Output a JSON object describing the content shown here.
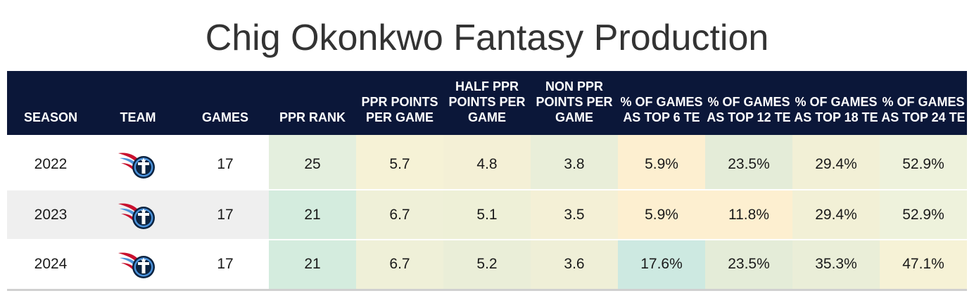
{
  "title": "Chig Okonkwo Fantasy Production",
  "columns": [
    "SEASON",
    "TEAM",
    "GAMES",
    "PPR RANK",
    "PPR POINTS PER GAME",
    "HALF PPR POINTS PER GAME",
    "NON PPR POINTS PER GAME",
    "% OF GAMES AS TOP 6 TE",
    "% OF GAMES AS TOP 12 TE",
    "% OF GAMES AS TOP 18 TE",
    "% OF GAMES AS TOP 24 TE"
  ],
  "rows": [
    {
      "season": "2022",
      "team_logo": "titans-logo-icon",
      "games": "17",
      "ppr_rank": "25",
      "ppr_ppg": "5.7",
      "half_ppr_ppg": "4.8",
      "non_ppr_ppg": "3.8",
      "top6": "5.9%",
      "top12": "23.5%",
      "top18": "29.4%",
      "top24": "52.9%",
      "row_bg": "#ffffff",
      "colors": [
        "#e4efde",
        "#f6f2d6",
        "#f4f0d6",
        "#e9eed9",
        "#fdefd0",
        "#e4ecd8",
        "#f2f0d6",
        "#eef2dc"
      ]
    },
    {
      "season": "2023",
      "team_logo": "titans-logo-icon",
      "games": "17",
      "ppr_rank": "21",
      "ppr_ppg": "6.7",
      "half_ppr_ppg": "5.1",
      "non_ppr_ppg": "3.5",
      "top6": "5.9%",
      "top12": "11.8%",
      "top18": "29.4%",
      "top24": "52.9%",
      "row_bg": "#efefef",
      "colors": [
        "#d4ecde",
        "#eff0d8",
        "#eef0d7",
        "#f4f0d6",
        "#fdefd0",
        "#fdefd0",
        "#f2f0d6",
        "#eef2dc"
      ]
    },
    {
      "season": "2024",
      "team_logo": "titans-logo-icon",
      "games": "17",
      "ppr_rank": "21",
      "ppr_ppg": "6.7",
      "half_ppr_ppg": "5.2",
      "non_ppr_ppg": "3.6",
      "top6": "17.6%",
      "top12": "23.5%",
      "top18": "35.3%",
      "top24": "47.1%",
      "row_bg": "#ffffff",
      "colors": [
        "#d4ecde",
        "#eff0d8",
        "#eaeed8",
        "#efefd7",
        "#cde9e1",
        "#e4ecd8",
        "#eaeed8",
        "#f6f2d6"
      ]
    }
  ],
  "chart_data": {
    "type": "table",
    "title": "Chig Okonkwo Fantasy Production",
    "columns": [
      "SEASON",
      "TEAM",
      "GAMES",
      "PPR RANK",
      "PPR POINTS PER GAME",
      "HALF PPR POINTS PER GAME",
      "NON PPR POINTS PER GAME",
      "% OF GAMES AS TOP 6 TE",
      "% OF GAMES AS TOP 12 TE",
      "% OF GAMES AS TOP 18 TE",
      "% OF GAMES AS TOP 24 TE"
    ],
    "rows": [
      [
        2022,
        "Titans",
        17,
        25,
        5.7,
        4.8,
        3.8,
        5.9,
        23.5,
        29.4,
        52.9
      ],
      [
        2023,
        "Titans",
        17,
        21,
        6.7,
        5.1,
        3.5,
        5.9,
        11.8,
        29.4,
        52.9
      ],
      [
        2024,
        "Titans",
        17,
        21,
        6.7,
        5.2,
        3.6,
        17.6,
        23.5,
        35.3,
        47.1
      ]
    ]
  }
}
